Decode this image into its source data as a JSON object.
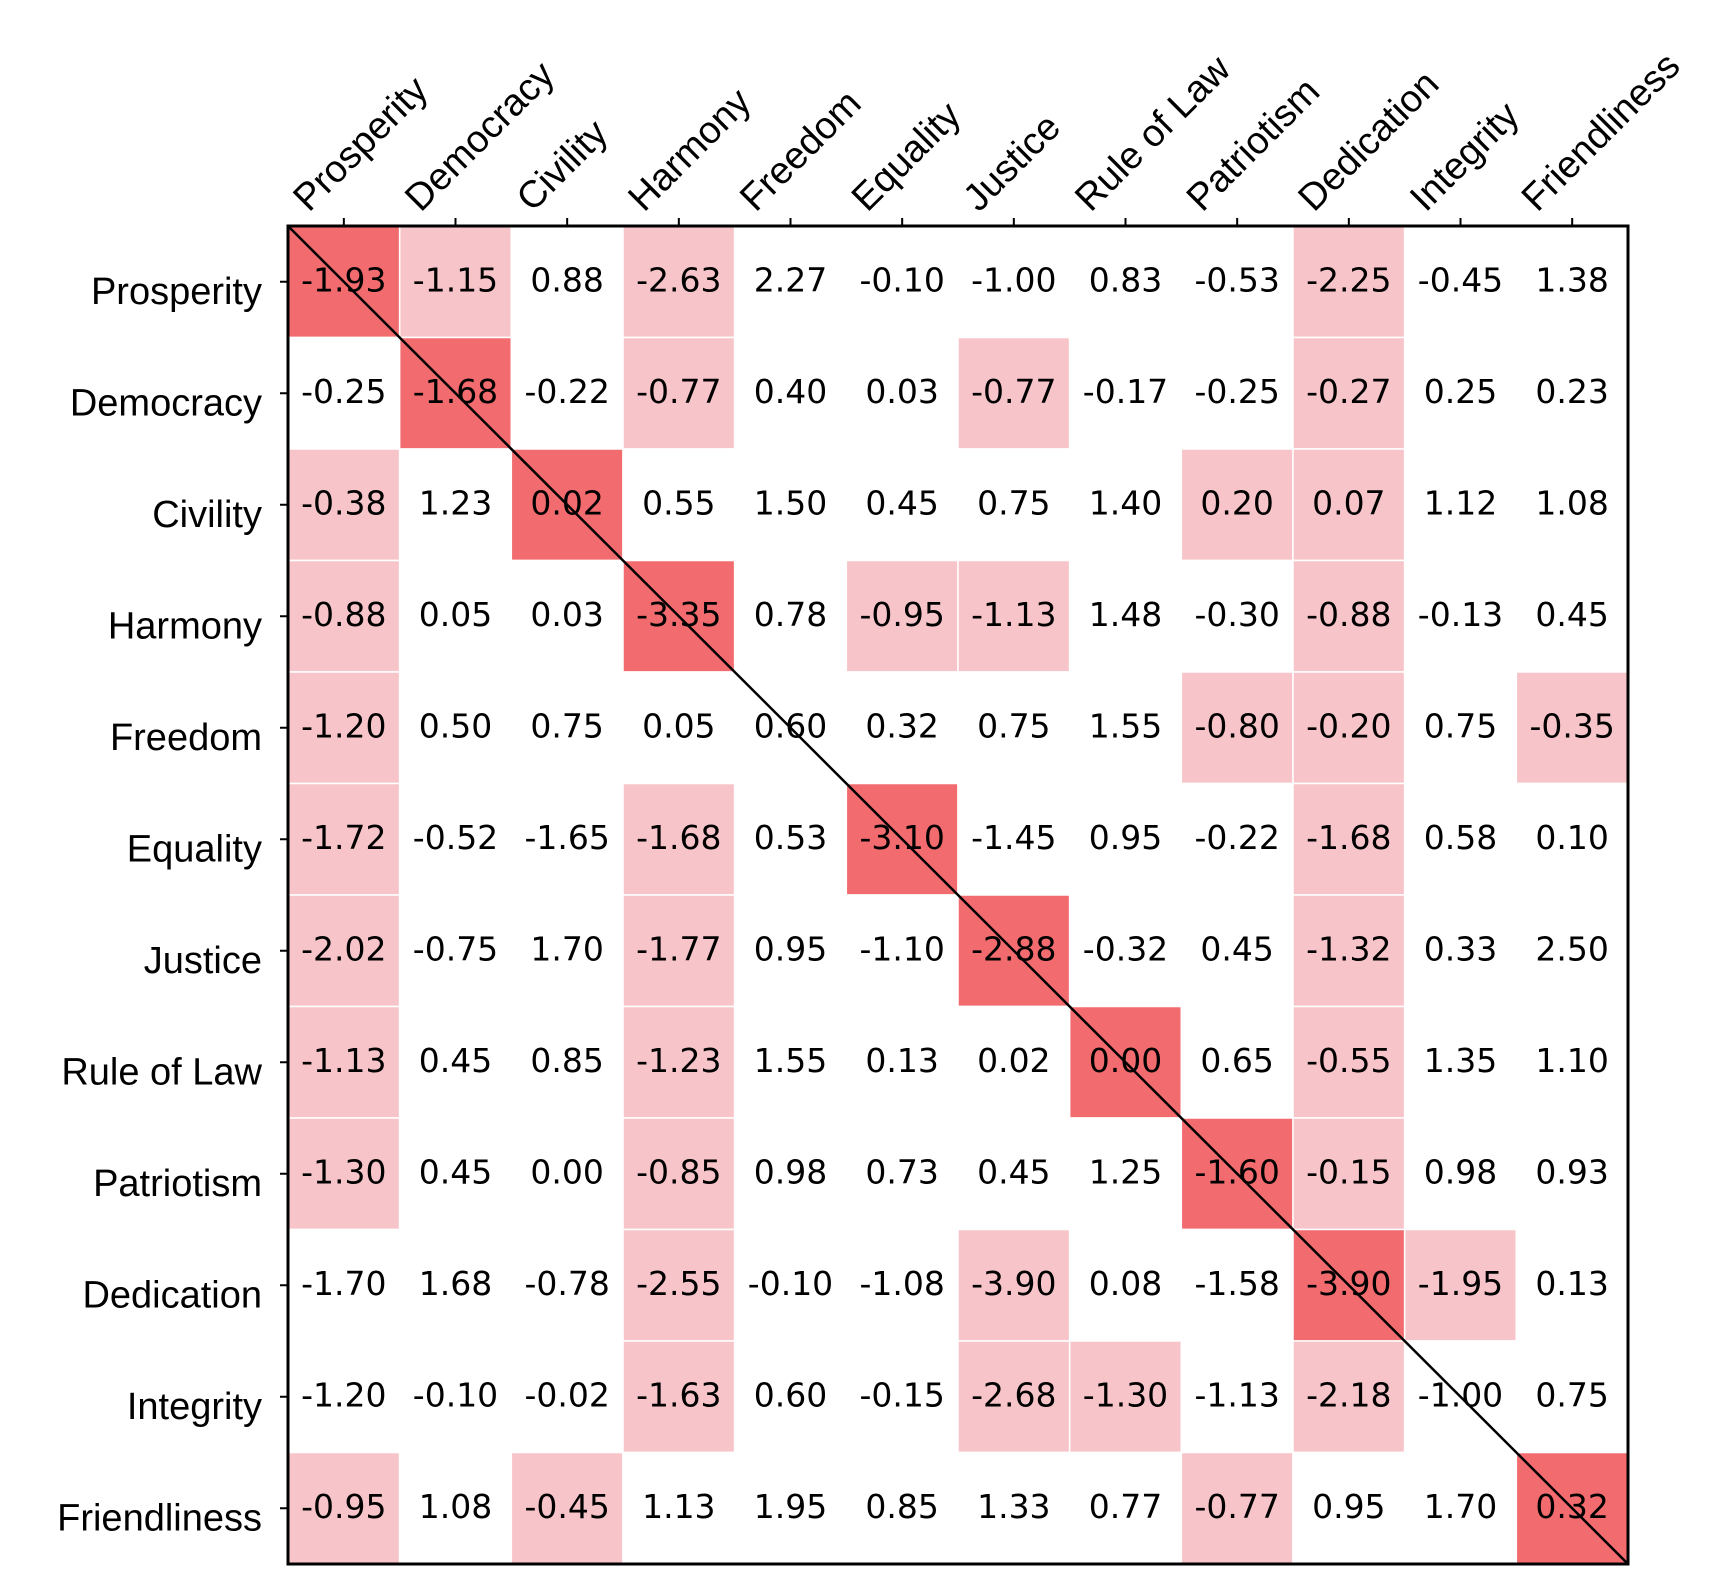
{
  "chart_data": {
    "type": "heatmap",
    "x_categories": [
      "Prosperity",
      "Democracy",
      "Civility",
      "Harmony",
      "Freedom",
      "Equality",
      "Justice",
      "Rule of Law",
      "Patriotism",
      "Dedication",
      "Integrity",
      "Friendliness"
    ],
    "y_categories": [
      "Prosperity",
      "Democracy",
      "Civility",
      "Harmony",
      "Freedom",
      "Equality",
      "Justice",
      "Rule of Law",
      "Patriotism",
      "Dedication",
      "Integrity",
      "Friendliness"
    ],
    "values": [
      [
        -1.93,
        -1.15,
        0.88,
        -2.63,
        2.27,
        -0.1,
        -1.0,
        0.83,
        -0.53,
        -2.25,
        -0.45,
        1.38
      ],
      [
        -0.25,
        -1.68,
        -0.22,
        -0.77,
        0.4,
        0.03,
        -0.77,
        -0.17,
        -0.25,
        -0.27,
        0.25,
        0.23
      ],
      [
        -0.38,
        1.23,
        0.02,
        0.55,
        1.5,
        0.45,
        0.75,
        1.4,
        0.2,
        0.07,
        1.12,
        1.08
      ],
      [
        -0.88,
        0.05,
        0.03,
        -3.35,
        0.78,
        -0.95,
        -1.13,
        1.48,
        -0.3,
        -0.88,
        -0.13,
        0.45
      ],
      [
        -1.2,
        0.5,
        0.75,
        0.05,
        0.6,
        0.32,
        0.75,
        1.55,
        -0.8,
        -0.2,
        0.75,
        -0.35
      ],
      [
        -1.72,
        -0.52,
        -1.65,
        -1.68,
        0.53,
        -3.1,
        -1.45,
        0.95,
        -0.22,
        -1.68,
        0.58,
        0.1
      ],
      [
        -2.02,
        -0.75,
        1.7,
        -1.77,
        0.95,
        -1.1,
        -2.88,
        -0.32,
        0.45,
        -1.32,
        0.33,
        2.5
      ],
      [
        -1.13,
        0.45,
        0.85,
        -1.23,
        1.55,
        0.13,
        0.02,
        0.0,
        0.65,
        -0.55,
        1.35,
        1.1
      ],
      [
        -1.3,
        0.45,
        0.0,
        -0.85,
        0.98,
        0.73,
        0.45,
        1.25,
        -1.6,
        -0.15,
        0.98,
        0.93
      ],
      [
        -1.7,
        1.68,
        -0.78,
        -2.55,
        -0.1,
        -1.08,
        -3.9,
        0.08,
        -1.58,
        -3.9,
        -1.95,
        0.13
      ],
      [
        -1.2,
        -0.1,
        -0.02,
        -1.63,
        0.6,
        -0.15,
        -2.68,
        -1.3,
        -1.13,
        -2.18,
        -1.0,
        0.75
      ],
      [
        -0.95,
        1.08,
        -0.45,
        1.13,
        1.95,
        0.85,
        1.33,
        0.77,
        -0.77,
        0.95,
        1.7,
        0.32
      ]
    ],
    "value_labels": [
      [
        "-1.93",
        "-1.15",
        "0.88",
        "-2.63",
        "2.27",
        "-0.10",
        "-1.00",
        "0.83",
        "-0.53",
        "-2.25",
        "-0.45",
        "1.38"
      ],
      [
        "-0.25",
        "-1.68",
        "-0.22",
        "-0.77",
        "0.40",
        "0.03",
        "-0.77",
        "-0.17",
        "-0.25",
        "-0.27",
        "0.25",
        "0.23"
      ],
      [
        "-0.38",
        "1.23",
        "0.02",
        "0.55",
        "1.50",
        "0.45",
        "0.75",
        "1.40",
        "0.20",
        "0.07",
        "1.12",
        "1.08"
      ],
      [
        "-0.88",
        "0.05",
        "0.03",
        "-3.35",
        "0.78",
        "-0.95",
        "-1.13",
        "1.48",
        "-0.30",
        "-0.88",
        "-0.13",
        "0.45"
      ],
      [
        "-1.20",
        "0.50",
        "0.75",
        "0.05",
        "0.60",
        "0.32",
        "0.75",
        "1.55",
        "-0.80",
        "-0.20",
        "0.75",
        "-0.35"
      ],
      [
        "-1.72",
        "-0.52",
        "-1.65",
        "-1.68",
        "0.53",
        "-3.10",
        "-1.45",
        "0.95",
        "-0.22",
        "-1.68",
        "0.58",
        "0.10"
      ],
      [
        "-2.02",
        "-0.75",
        "1.70",
        "-1.77",
        "0.95",
        "-1.10",
        "-2.88",
        "-0.32",
        "0.45",
        "-1.32",
        "0.33",
        "2.50"
      ],
      [
        "-1.13",
        "0.45",
        "0.85",
        "-1.23",
        "1.55",
        "0.13",
        "0.02",
        "0.00",
        "0.65",
        "-0.55",
        "1.35",
        "1.10"
      ],
      [
        "-1.30",
        "0.45",
        "0.00",
        "-0.85",
        "0.98",
        "0.73",
        "0.45",
        "1.25",
        "-1.60",
        "-0.15",
        "0.98",
        "0.93"
      ],
      [
        "-1.70",
        "1.68",
        "-0.78",
        "-2.55",
        "-0.10",
        "-1.08",
        "-3.90",
        "0.08",
        "-1.58",
        "-3.90",
        "-1.95",
        "0.13"
      ],
      [
        "-1.20",
        "-0.10",
        "-0.02",
        "-1.63",
        "0.60",
        "-0.15",
        "-2.68",
        "-1.30",
        "-1.13",
        "-2.18",
        "-1.00",
        "0.75"
      ],
      [
        "-0.95",
        "1.08",
        "-0.45",
        "1.13",
        "1.95",
        "0.85",
        "1.33",
        "0.77",
        "-0.77",
        "0.95",
        "1.70",
        "0.32"
      ]
    ],
    "shade_colors": [
      "#ffffff",
      "#f7c5c9",
      "#f26b6e"
    ],
    "shades": [
      [
        2,
        1,
        0,
        1,
        0,
        0,
        0,
        0,
        0,
        1,
        0,
        0
      ],
      [
        0,
        2,
        0,
        1,
        0,
        0,
        1,
        0,
        0,
        1,
        0,
        0
      ],
      [
        1,
        0,
        2,
        0,
        0,
        0,
        0,
        0,
        1,
        1,
        0,
        0
      ],
      [
        1,
        0,
        0,
        2,
        0,
        1,
        1,
        0,
        0,
        1,
        0,
        0
      ],
      [
        1,
        0,
        0,
        0,
        0,
        0,
        0,
        0,
        1,
        1,
        0,
        1
      ],
      [
        1,
        0,
        0,
        1,
        0,
        2,
        0,
        0,
        0,
        1,
        0,
        0
      ],
      [
        1,
        0,
        0,
        1,
        0,
        0,
        2,
        0,
        0,
        1,
        0,
        0
      ],
      [
        1,
        0,
        0,
        1,
        0,
        0,
        0,
        2,
        0,
        1,
        0,
        0
      ],
      [
        1,
        0,
        0,
        1,
        0,
        0,
        0,
        0,
        2,
        1,
        0,
        0
      ],
      [
        0,
        0,
        0,
        1,
        0,
        0,
        1,
        0,
        0,
        2,
        1,
        0
      ],
      [
        0,
        0,
        0,
        1,
        0,
        0,
        1,
        1,
        0,
        1,
        0,
        0
      ],
      [
        1,
        0,
        1,
        0,
        0,
        0,
        0,
        0,
        1,
        0,
        0,
        2
      ]
    ]
  }
}
